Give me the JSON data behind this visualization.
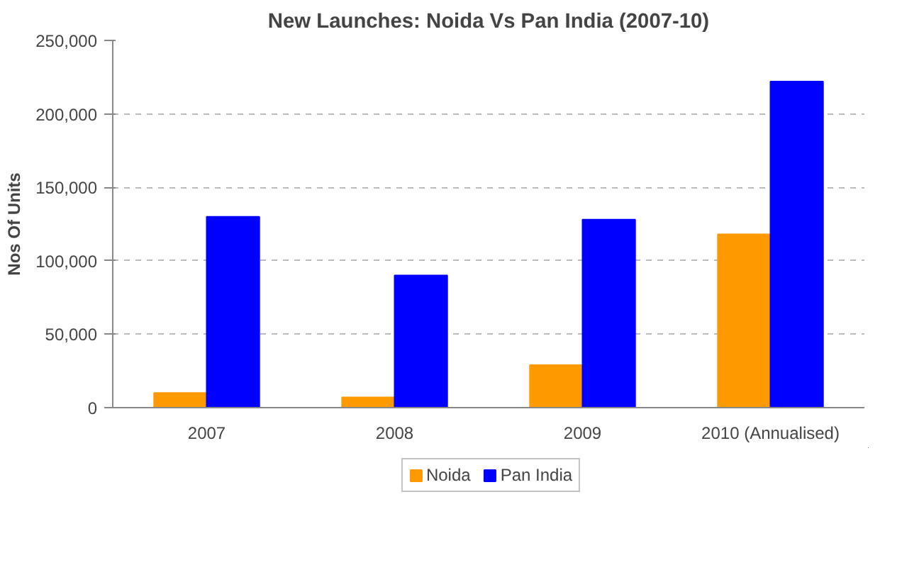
{
  "chart_data": {
    "type": "bar",
    "title": "New Launches: Noida Vs Pan India (2007-10)",
    "ylabel": "Nos Of Units",
    "categories": [
      "2007",
      "2008",
      "2009",
      "2010 (Annualised)"
    ],
    "series": [
      {
        "name": "Noida",
        "color": "#ff9900",
        "values": [
          10000,
          7000,
          29000,
          118000
        ]
      },
      {
        "name": "Pan India",
        "color": "#0000ff",
        "values": [
          130000,
          90000,
          128000,
          222000
        ]
      }
    ],
    "ylim": [
      0,
      250000
    ],
    "yticks": [
      {
        "value": 0,
        "label": "0"
      },
      {
        "value": 50000,
        "label": "50,000"
      },
      {
        "value": 100000,
        "label": "100,000"
      },
      {
        "value": 150000,
        "label": "150,000"
      },
      {
        "value": 200000,
        "label": "200,000"
      },
      {
        "value": 250000,
        "label": "250,000"
      }
    ],
    "grid": "y",
    "legend": "bottom"
  }
}
